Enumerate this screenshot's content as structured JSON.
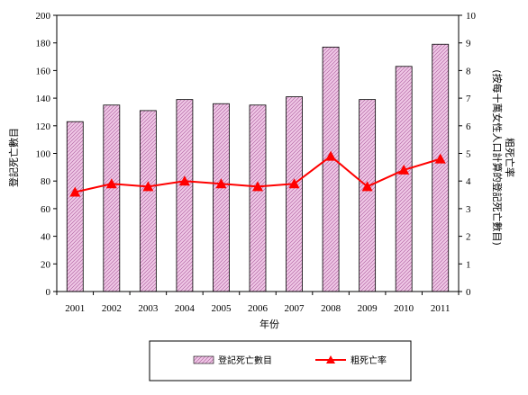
{
  "chart_data": {
    "type": "bar",
    "categories": [
      "2001",
      "2002",
      "2003",
      "2004",
      "2005",
      "2006",
      "2007",
      "2008",
      "2009",
      "2010",
      "2011"
    ],
    "series": [
      {
        "name": "登記死亡數目",
        "type": "bar",
        "axis": "left",
        "values": [
          123,
          135,
          131,
          139,
          136,
          135,
          141,
          177,
          139,
          163,
          179
        ]
      },
      {
        "name": "粗死亡率",
        "type": "line",
        "axis": "right",
        "values": [
          3.6,
          3.9,
          3.8,
          4.0,
          3.9,
          3.8,
          3.9,
          4.9,
          3.8,
          4.4,
          4.8
        ]
      }
    ],
    "xlabel": "年份",
    "ylabel_left": "登記死亡數目",
    "ylabel_right_line1": "粗死亡率",
    "ylabel_right_line2": "(按每十萬女性人口計算的登記死亡數目)",
    "ylim_left": [
      0,
      200
    ],
    "ylim_right": [
      0,
      10
    ],
    "yticks_left": [
      "0",
      "20",
      "40",
      "60",
      "80",
      "100",
      "120",
      "140",
      "160",
      "180",
      "200"
    ],
    "yticks_right": [
      "0",
      "1",
      "2",
      "3",
      "4",
      "5",
      "6",
      "7",
      "8",
      "9",
      "10"
    ],
    "grid": false,
    "legend_position": "bottom",
    "colors": {
      "bar_fill": "#f0c8e6",
      "bar_hatch": "#b46aa6",
      "line": "#ff0000"
    }
  }
}
